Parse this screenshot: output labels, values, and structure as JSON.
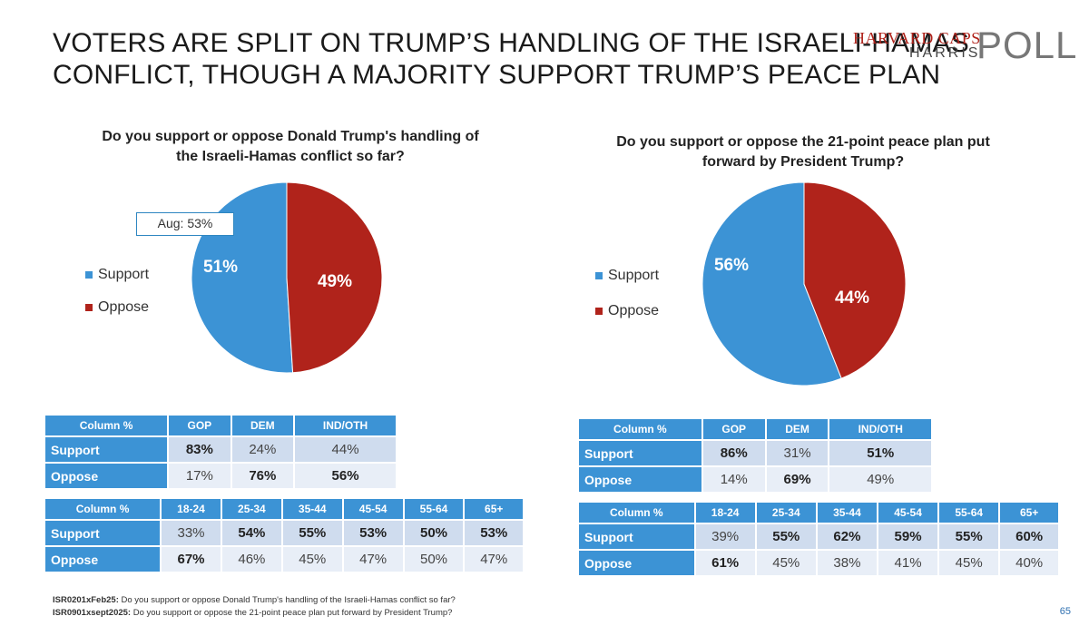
{
  "title": {
    "line1": "VOTERS ARE SPLIT ON TRUMP’S HANDLING OF THE ISRAELI-HAMAS",
    "line2": "CONFLICT, THOUGH A MAJORITY SUPPORT TRUMP’S PEACE PLAN"
  },
  "logo": {
    "line1": "HARVARD CAPS",
    "line2": "HARRIS",
    "line3": "POLL"
  },
  "colors": {
    "support": "#3c93d5",
    "oppose": "#b0231b",
    "header": "#3c93d5"
  },
  "chart_data": [
    {
      "type": "pie",
      "title_line1": "Do you support or oppose Donald Trump's handling of",
      "title_line2": "the Israeli-Hamas conflict so far?",
      "slices": [
        {
          "label": "Support",
          "value": 51,
          "display": "51%"
        },
        {
          "label": "Oppose",
          "value": 49,
          "display": "49%"
        }
      ],
      "annotation": "Aug: 53%",
      "legend_position": "left"
    },
    {
      "type": "pie",
      "title_line1": "Do you support or oppose the 21-point peace plan put",
      "title_line2": "forward by President Trump?",
      "slices": [
        {
          "label": "Support",
          "value": 56,
          "display": "56%"
        },
        {
          "label": "Oppose",
          "value": 44,
          "display": "44%"
        }
      ],
      "legend_position": "left"
    }
  ],
  "tables": {
    "left_party": {
      "header": [
        "Column %",
        "GOP",
        "DEM",
        "IND/OTH"
      ],
      "rows": [
        {
          "label": "Support",
          "values": [
            "83%",
            "24%",
            "44%"
          ],
          "bold": [
            true,
            false,
            false
          ]
        },
        {
          "label": "Oppose",
          "values": [
            "17%",
            "76%",
            "56%"
          ],
          "bold": [
            false,
            true,
            true
          ]
        }
      ]
    },
    "left_age": {
      "header": [
        "Column %",
        "18-24",
        "25-34",
        "35-44",
        "45-54",
        "55-64",
        "65+"
      ],
      "rows": [
        {
          "label": "Support",
          "values": [
            "33%",
            "54%",
            "55%",
            "53%",
            "50%",
            "53%"
          ],
          "bold": [
            false,
            true,
            true,
            true,
            true,
            true
          ]
        },
        {
          "label": "Oppose",
          "values": [
            "67%",
            "46%",
            "45%",
            "47%",
            "50%",
            "47%"
          ],
          "bold": [
            true,
            false,
            false,
            false,
            false,
            false
          ]
        }
      ]
    },
    "right_party": {
      "header": [
        "Column %",
        "GOP",
        "DEM",
        "IND/OTH"
      ],
      "rows": [
        {
          "label": "Support",
          "values": [
            "86%",
            "31%",
            "51%"
          ],
          "bold": [
            true,
            false,
            true
          ]
        },
        {
          "label": "Oppose",
          "values": [
            "14%",
            "69%",
            "49%"
          ],
          "bold": [
            false,
            true,
            false
          ]
        }
      ]
    },
    "right_age": {
      "header": [
        "Column %",
        "18-24",
        "25-34",
        "35-44",
        "45-54",
        "55-64",
        "65+"
      ],
      "rows": [
        {
          "label": "Support",
          "values": [
            "39%",
            "55%",
            "62%",
            "59%",
            "55%",
            "60%"
          ],
          "bold": [
            false,
            true,
            true,
            true,
            true,
            true
          ]
        },
        {
          "label": "Oppose",
          "values": [
            "61%",
            "45%",
            "38%",
            "41%",
            "45%",
            "40%"
          ],
          "bold": [
            true,
            false,
            false,
            false,
            false,
            false
          ]
        }
      ]
    }
  },
  "footnotes": [
    {
      "code": "ISR0201xFeb25:",
      "text": " Do you support or oppose Donald Trump's handling of the Israeli-Hamas conflict so far?"
    },
    {
      "code": "ISR0901xsept2025:",
      "text": " Do you support or oppose the 21-point peace plan put forward by President Trump?"
    }
  ],
  "page_number": "65"
}
